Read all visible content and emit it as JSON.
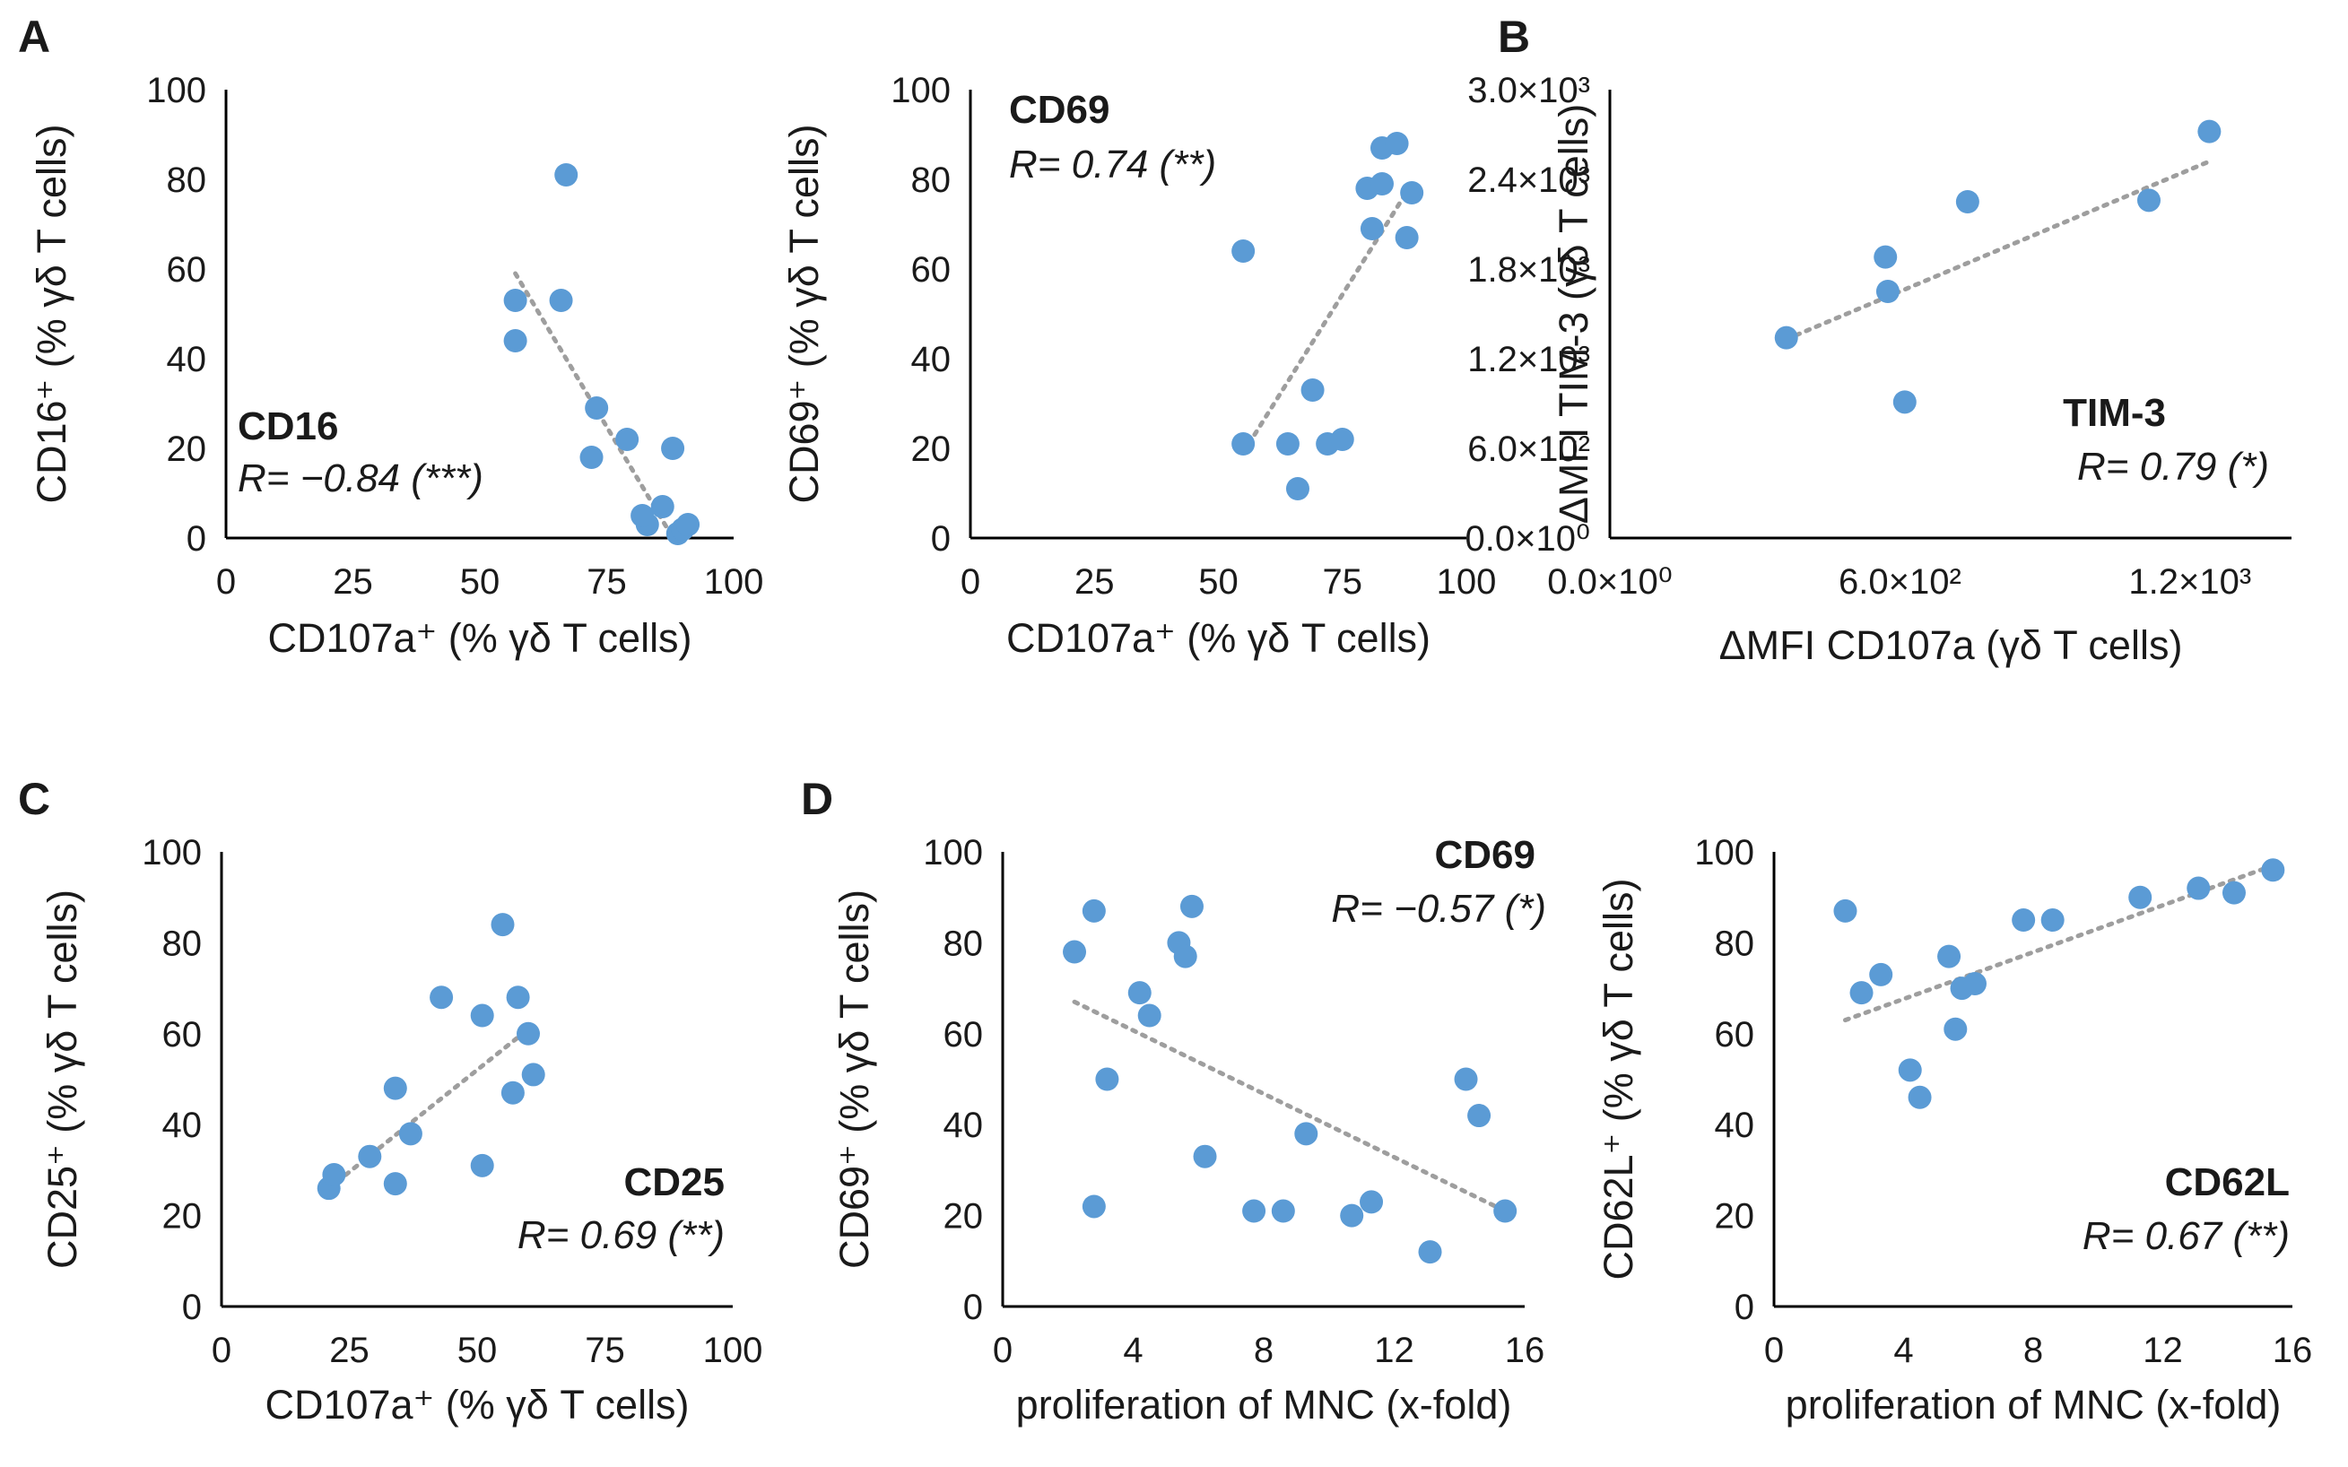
{
  "colors": {
    "point": "#5b9bd5",
    "trend": "#9e9e9e",
    "axis": "#000000",
    "text": "#1a1a1a"
  },
  "chart_data": [
    {
      "id": "A1",
      "panel_letter": "A",
      "type": "scatter",
      "label_main": "CD16",
      "label_stat": "R= −0.84 (***)",
      "xlabel": "CD107a⁺ (% γδ T cells)",
      "ylabel": "CD16⁺ (% γδ T cells)",
      "xlim": [
        0,
        100
      ],
      "ylim": [
        0,
        100
      ],
      "xticks": [
        0,
        25,
        50,
        75,
        100
      ],
      "xtick_labels": [
        "0",
        "25",
        "50",
        "75",
        "100"
      ],
      "yticks": [
        0,
        20,
        40,
        60,
        80,
        100
      ],
      "ytick_labels": [
        "0",
        "20",
        "40",
        "60",
        "80",
        "100"
      ],
      "x": [
        57,
        57,
        66,
        67,
        73,
        72,
        79,
        83,
        82,
        86,
        88,
        89,
        90,
        91
      ],
      "y": [
        53,
        44,
        53,
        81,
        29,
        18,
        22,
        3,
        5,
        7,
        20,
        1,
        2,
        3
      ],
      "trendline": {
        "x": [
          57,
          87
        ],
        "y": [
          59,
          2
        ]
      }
    },
    {
      "id": "A2",
      "panel_letter": "",
      "type": "scatter",
      "label_main": "CD69",
      "label_stat": "R= 0.74 (**)",
      "xlabel": "CD107a⁺ (% γδ T cells)",
      "ylabel": "CD69⁺ (% γδ T cells)",
      "xlim": [
        0,
        100
      ],
      "ylim": [
        0,
        100
      ],
      "xticks": [
        0,
        25,
        50,
        75,
        100
      ],
      "xtick_labels": [
        "0",
        "25",
        "50",
        "75",
        "100"
      ],
      "yticks": [
        0,
        20,
        40,
        60,
        80,
        100
      ],
      "ytick_labels": [
        "0",
        "20",
        "40",
        "60",
        "80",
        "100"
      ],
      "x": [
        55,
        55,
        64,
        66,
        69,
        72,
        75,
        80,
        81,
        83,
        83,
        86,
        88,
        89
      ],
      "y": [
        64,
        21,
        21,
        11,
        33,
        21,
        22,
        78,
        69,
        87,
        79,
        88,
        67,
        77
      ],
      "trendline": {
        "x": [
          55,
          89
        ],
        "y": [
          19,
          79
        ]
      }
    },
    {
      "id": "B",
      "panel_letter": "B",
      "type": "scatter",
      "label_main": "TIM-3",
      "label_stat": "R= 0.79 (*)",
      "xlabel": "ΔMFI CD107a (γδ T cells)",
      "ylabel": "ΔMFI TIM-3 (γδ T cells)",
      "xlim": [
        0,
        1410
      ],
      "ylim": [
        0,
        3000
      ],
      "xticks": [
        0,
        600,
        1200
      ],
      "xtick_labels": [
        "0.0×10⁰",
        "6.0×10²",
        "1.2×10³"
      ],
      "yticks": [
        0,
        600,
        1200,
        1800,
        2400,
        3000
      ],
      "ytick_labels": [
        "0.0×10⁰",
        "6.0×10²",
        "1.2×10³",
        "1.8×10³",
        "2.4×10³",
        "3.0×10³"
      ],
      "x": [
        365,
        570,
        575,
        610,
        740,
        1115,
        1240
      ],
      "y": [
        1340,
        1880,
        1650,
        910,
        2250,
        2260,
        2720
      ],
      "trendline": {
        "x": [
          365,
          1240
        ],
        "y": [
          1330,
          2520
        ]
      }
    },
    {
      "id": "C",
      "panel_letter": "C",
      "type": "scatter",
      "label_main": "CD25",
      "label_stat": "R= 0.69 (**)",
      "xlabel": "CD107a⁺ (% γδ T cells)",
      "ylabel": "CD25⁺ (% γδ T cells)",
      "xlim": [
        0,
        100
      ],
      "ylim": [
        0,
        100
      ],
      "xticks": [
        0,
        25,
        50,
        75,
        100
      ],
      "xtick_labels": [
        "0",
        "25",
        "50",
        "75",
        "100"
      ],
      "yticks": [
        0,
        20,
        40,
        60,
        80,
        100
      ],
      "ytick_labels": [
        "0",
        "20",
        "40",
        "60",
        "80",
        "100"
      ],
      "x": [
        21,
        22,
        29,
        34,
        34,
        37,
        43,
        51,
        51,
        55,
        57,
        58,
        60,
        61
      ],
      "y": [
        26,
        29,
        33,
        48,
        27,
        38,
        68,
        64,
        31,
        84,
        47,
        68,
        60,
        51
      ],
      "trendline": {
        "x": [
          21,
          60
        ],
        "y": [
          26,
          61
        ]
      }
    },
    {
      "id": "D1",
      "panel_letter": "D",
      "type": "scatter",
      "label_main": "CD69",
      "label_stat": "R= −0.57 (*)",
      "xlabel": "proliferation of MNC (x-fold)",
      "ylabel": "CD69⁺ (% γδ T cells)",
      "xlim": [
        0,
        16
      ],
      "ylim": [
        0,
        100
      ],
      "xticks": [
        0,
        4,
        8,
        12,
        16
      ],
      "xtick_labels": [
        "0",
        "4",
        "8",
        "12",
        "16"
      ],
      "yticks": [
        0,
        20,
        40,
        60,
        80,
        100
      ],
      "ytick_labels": [
        "0",
        "20",
        "40",
        "60",
        "80",
        "100"
      ],
      "x": [
        2.2,
        2.8,
        2.8,
        3.2,
        4.2,
        4.5,
        5.4,
        5.6,
        5.8,
        6.2,
        7.7,
        8.6,
        9.3,
        10.7,
        11.3,
        13.1,
        14.2,
        14.6,
        15.4
      ],
      "y": [
        78,
        87,
        22,
        50,
        69,
        64,
        80,
        77,
        88,
        33,
        21,
        21,
        38,
        20,
        23,
        12,
        50,
        42,
        21
      ],
      "trendline": {
        "x": [
          2.2,
          15.4
        ],
        "y": [
          67,
          21
        ]
      }
    },
    {
      "id": "D2",
      "panel_letter": "",
      "type": "scatter",
      "label_main": "CD62L",
      "label_stat": "R= 0.67 (**)",
      "xlabel": "proliferation of MNC (x-fold)",
      "ylabel": "CD62L⁺ (% γδ T cells)",
      "xlim": [
        0,
        16
      ],
      "ylim": [
        0,
        100
      ],
      "xticks": [
        0,
        4,
        8,
        12,
        16
      ],
      "xtick_labels": [
        "0",
        "4",
        "8",
        "12",
        "16"
      ],
      "yticks": [
        0,
        20,
        40,
        60,
        80,
        100
      ],
      "ytick_labels": [
        "0",
        "20",
        "40",
        "60",
        "80",
        "100"
      ],
      "x": [
        2.2,
        2.7,
        3.3,
        4.2,
        4.5,
        5.4,
        5.6,
        5.8,
        6.2,
        7.7,
        8.6,
        11.3,
        13.1,
        14.2,
        15.4
      ],
      "y": [
        87,
        69,
        73,
        52,
        46,
        77,
        61,
        70,
        71,
        85,
        85,
        90,
        92,
        91,
        96
      ],
      "trendline": {
        "x": [
          2.2,
          15.4
        ],
        "y": [
          63,
          97
        ]
      }
    }
  ]
}
